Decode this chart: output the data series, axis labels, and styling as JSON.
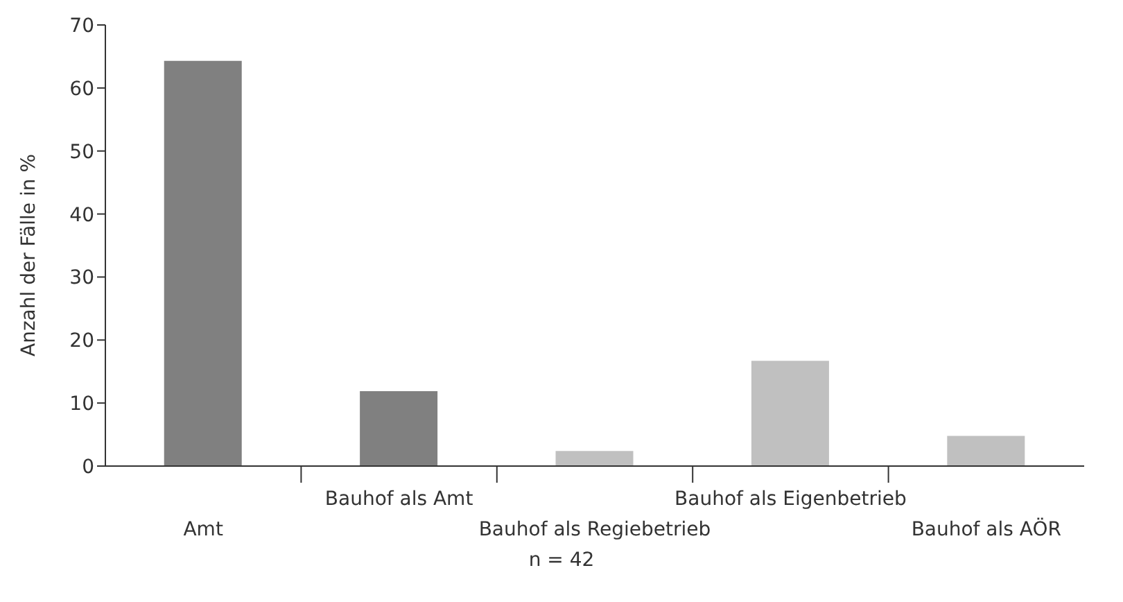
{
  "chart_data": {
    "type": "bar",
    "ylabel": "Anzahl der Fälle in %",
    "categories": [
      "Amt",
      "Bauhof als Amt",
      "Bauhof als Regiebetrieb",
      "Bauhof als Eigenbetrieb",
      "Bauhof als AÖR"
    ],
    "values": [
      64.3,
      11.9,
      2.4,
      16.7,
      4.8
    ],
    "colors": [
      "#808080",
      "#808080",
      "#c0c0c0",
      "#c0c0c0",
      "#c0c0c0"
    ],
    "ylim": [
      0,
      70
    ],
    "yticks": [
      0,
      10,
      20,
      30,
      40,
      50,
      60,
      70
    ],
    "grid": false,
    "legend": false,
    "annotations": [
      "n = 42"
    ]
  }
}
